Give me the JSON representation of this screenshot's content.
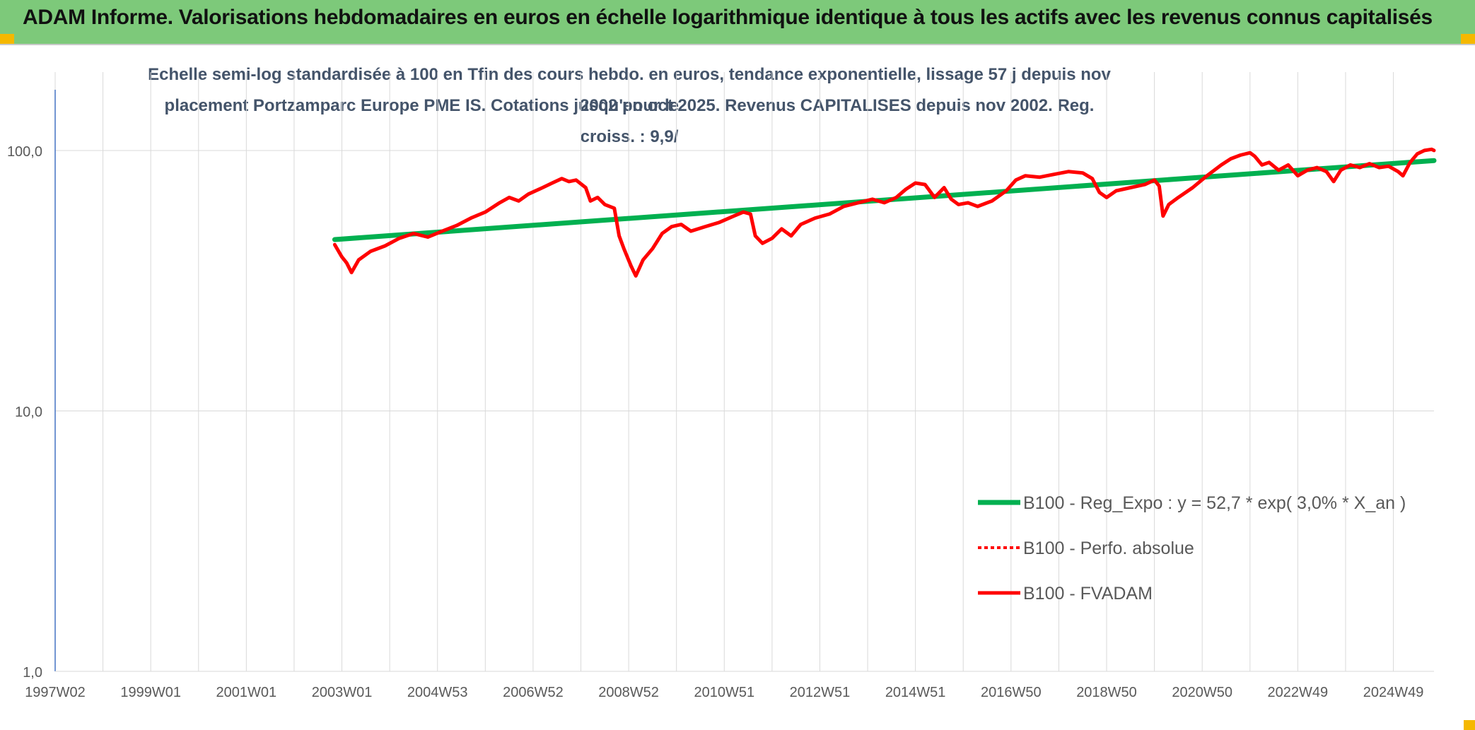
{
  "header": {
    "title": "ADAM Informe. Valorisations hebdomadaires en euros en échelle logarithmique identique à tous les actifs avec les revenus connus capitalisés"
  },
  "colors": {
    "banner": "#7dc97a",
    "regression": "#00b050",
    "fvadam": "#ff0000",
    "axis_text": "#595959",
    "subtitle": "#44546a"
  },
  "chart_data": {
    "type": "line",
    "title_line1": "Echelle semi-log standardisée à 100 en Tfin des cours hebdo. en euros, tendance exponentielle, lissage 57 j depuis nov 2002 pour le",
    "title_line2": "placement Portzamparc Europe PME IS. Cotations jusqu'en oct 2025. Revenus CAPITALISES depuis nov 2002. Reg. croiss. : 9,9/",
    "y_scale": "log",
    "ylim": [
      1,
      200
    ],
    "y_ticks": [
      {
        "value": 100,
        "label": "100,0"
      },
      {
        "value": 10,
        "label": "10,0"
      },
      {
        "value": 1,
        "label": "1,0"
      }
    ],
    "x_range_years": [
      1997.0,
      2025.85
    ],
    "x_ticks": [
      {
        "year": 1997.0,
        "label": "1997W02"
      },
      {
        "year": 1999.0,
        "label": "1999W01"
      },
      {
        "year": 2001.0,
        "label": "2001W01"
      },
      {
        "year": 2003.0,
        "label": "2003W01"
      },
      {
        "year": 2005.0,
        "label": "2004W53"
      },
      {
        "year": 2007.0,
        "label": "2006W52"
      },
      {
        "year": 2009.0,
        "label": "2008W52"
      },
      {
        "year": 2011.0,
        "label": "2010W51"
      },
      {
        "year": 2013.0,
        "label": "2012W51"
      },
      {
        "year": 2015.0,
        "label": "2014W51"
      },
      {
        "year": 2017.0,
        "label": "2016W50"
      },
      {
        "year": 2019.0,
        "label": "2018W50"
      },
      {
        "year": 2021.0,
        "label": "2020W50"
      },
      {
        "year": 2023.0,
        "label": "2022W49"
      },
      {
        "year": 2025.0,
        "label": "2024W49"
      }
    ],
    "grid": "vertical every year, horizontal at decades",
    "legend_position": "bottom-right",
    "series": [
      {
        "name": "B100 - Reg_Expo : y = 52,7 * exp( 3,0% *  X_an )",
        "style": "solid-thick",
        "color": "#00b050",
        "points": [
          [
            2002.85,
            45.5
          ],
          [
            2025.85,
            91.5
          ]
        ]
      },
      {
        "name": "B100 - Perfo. absolue",
        "style": "dotted",
        "color": "#ff0000",
        "points": []
      },
      {
        "name": "B100 - FVADAM",
        "style": "solid",
        "color": "#ff0000",
        "points": [
          [
            2002.85,
            43.5
          ],
          [
            2003.0,
            39.0
          ],
          [
            2003.1,
            37.0
          ],
          [
            2003.2,
            34.0
          ],
          [
            2003.35,
            38.0
          ],
          [
            2003.6,
            41.0
          ],
          [
            2003.9,
            43.0
          ],
          [
            2004.2,
            46.0
          ],
          [
            2004.5,
            48.0
          ],
          [
            2004.8,
            46.5
          ],
          [
            2005.1,
            49.0
          ],
          [
            2005.4,
            51.5
          ],
          [
            2005.7,
            55.0
          ],
          [
            2006.0,
            58.0
          ],
          [
            2006.3,
            63.0
          ],
          [
            2006.5,
            66.0
          ],
          [
            2006.7,
            64.0
          ],
          [
            2006.9,
            68.0
          ],
          [
            2007.2,
            72.0
          ],
          [
            2007.4,
            75.0
          ],
          [
            2007.6,
            78.0
          ],
          [
            2007.75,
            76.0
          ],
          [
            2007.9,
            77.0
          ],
          [
            2008.1,
            72.0
          ],
          [
            2008.2,
            64.0
          ],
          [
            2008.35,
            66.0
          ],
          [
            2008.5,
            62.0
          ],
          [
            2008.7,
            60.0
          ],
          [
            2008.8,
            47.0
          ],
          [
            2008.9,
            42.0
          ],
          [
            2009.05,
            36.0
          ],
          [
            2009.15,
            33.0
          ],
          [
            2009.3,
            38.0
          ],
          [
            2009.5,
            42.0
          ],
          [
            2009.7,
            48.0
          ],
          [
            2009.9,
            51.0
          ],
          [
            2010.1,
            52.0
          ],
          [
            2010.3,
            49.0
          ],
          [
            2010.6,
            51.0
          ],
          [
            2010.9,
            53.0
          ],
          [
            2011.2,
            56.0
          ],
          [
            2011.4,
            58.0
          ],
          [
            2011.55,
            57.0
          ],
          [
            2011.65,
            47.0
          ],
          [
            2011.8,
            44.0
          ],
          [
            2012.0,
            46.0
          ],
          [
            2012.2,
            50.0
          ],
          [
            2012.4,
            47.0
          ],
          [
            2012.6,
            52.0
          ],
          [
            2012.9,
            55.0
          ],
          [
            2013.2,
            57.0
          ],
          [
            2013.5,
            61.0
          ],
          [
            2013.8,
            63.0
          ],
          [
            2014.1,
            65.0
          ],
          [
            2014.35,
            63.0
          ],
          [
            2014.6,
            66.0
          ],
          [
            2014.8,
            71.0
          ],
          [
            2015.0,
            75.0
          ],
          [
            2015.2,
            74.0
          ],
          [
            2015.4,
            66.0
          ],
          [
            2015.6,
            72.0
          ],
          [
            2015.75,
            65.0
          ],
          [
            2015.9,
            62.0
          ],
          [
            2016.1,
            63.0
          ],
          [
            2016.3,
            61.0
          ],
          [
            2016.6,
            64.0
          ],
          [
            2016.9,
            70.0
          ],
          [
            2017.1,
            77.0
          ],
          [
            2017.3,
            80.0
          ],
          [
            2017.6,
            79.0
          ],
          [
            2017.9,
            81.0
          ],
          [
            2018.2,
            83.0
          ],
          [
            2018.5,
            82.0
          ],
          [
            2018.7,
            78.0
          ],
          [
            2018.85,
            69.0
          ],
          [
            2019.0,
            66.0
          ],
          [
            2019.2,
            70.0
          ],
          [
            2019.5,
            72.0
          ],
          [
            2019.8,
            74.0
          ],
          [
            2020.0,
            77.0
          ],
          [
            2020.1,
            73.0
          ],
          [
            2020.18,
            56.0
          ],
          [
            2020.3,
            62.0
          ],
          [
            2020.5,
            66.0
          ],
          [
            2020.8,
            72.0
          ],
          [
            2021.1,
            80.0
          ],
          [
            2021.4,
            88.0
          ],
          [
            2021.6,
            93.0
          ],
          [
            2021.8,
            96.0
          ],
          [
            2022.0,
            98.0
          ],
          [
            2022.1,
            95.0
          ],
          [
            2022.25,
            88.0
          ],
          [
            2022.4,
            90.0
          ],
          [
            2022.6,
            84.0
          ],
          [
            2022.8,
            88.0
          ],
          [
            2023.0,
            80.0
          ],
          [
            2023.2,
            84.0
          ],
          [
            2023.4,
            86.0
          ],
          [
            2023.6,
            83.0
          ],
          [
            2023.75,
            76.0
          ],
          [
            2023.9,
            84.0
          ],
          [
            2024.1,
            88.0
          ],
          [
            2024.3,
            86.0
          ],
          [
            2024.5,
            89.0
          ],
          [
            2024.7,
            86.0
          ],
          [
            2024.9,
            87.0
          ],
          [
            2025.1,
            83.0
          ],
          [
            2025.2,
            80.0
          ],
          [
            2025.35,
            90.0
          ],
          [
            2025.5,
            97.0
          ],
          [
            2025.65,
            100.0
          ],
          [
            2025.8,
            101.0
          ],
          [
            2025.85,
            100.0
          ]
        ]
      }
    ]
  }
}
